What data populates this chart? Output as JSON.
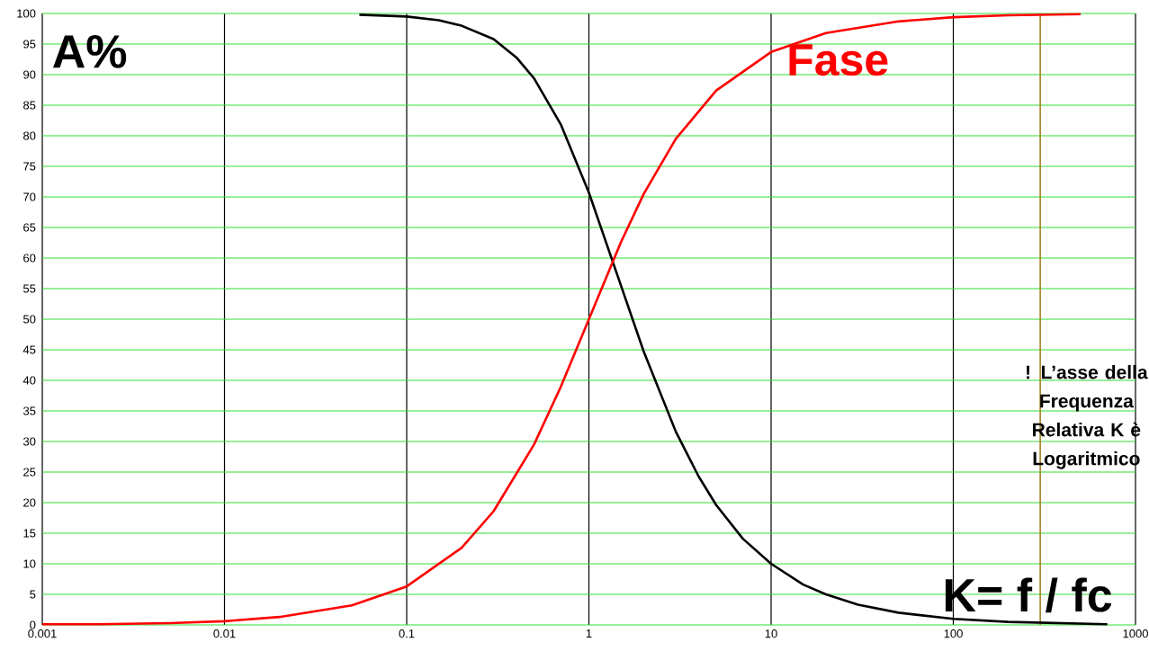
{
  "chart_data": {
    "type": "line",
    "xlabel": "K= f / fc",
    "ylabel": "A%",
    "log": "x",
    "grid": true,
    "marker": "none",
    "xlim": [
      0.001,
      1000
    ],
    "ylim": [
      0,
      100
    ],
    "xticks": [
      0.001,
      0.01,
      0.1,
      1,
      10,
      100,
      1000
    ],
    "yticks": [
      0,
      5,
      10,
      15,
      20,
      25,
      30,
      35,
      40,
      45,
      50,
      55,
      60,
      65,
      70,
      75,
      80,
      85,
      90,
      95,
      100
    ],
    "series": [
      {
        "color": "#000000",
        "x": [
          0.055,
          0.1,
          0.15,
          0.2,
          0.3,
          0.4,
          0.5,
          0.7,
          1,
          1.5,
          2,
          3,
          4,
          5,
          7,
          10,
          15,
          20,
          30,
          50,
          100,
          200,
          700
        ],
        "values": [
          99.8,
          99.5,
          98.9,
          98,
          95.8,
          92.8,
          89.4,
          81.9,
          70.7,
          55.5,
          44.7,
          31.6,
          24.3,
          19.6,
          14.1,
          10,
          6.6,
          5,
          3.3,
          2,
          1,
          0.5,
          0.1
        ]
      },
      {
        "name": "Fase",
        "color": "#ff0000",
        "x": [
          0.001,
          0.002,
          0.005,
          0.01,
          0.02,
          0.05,
          0.1,
          0.2,
          0.3,
          0.5,
          0.7,
          1,
          1.5,
          2,
          3,
          5,
          10,
          20,
          50,
          100,
          200,
          500
        ],
        "values": [
          0.1,
          0.1,
          0.3,
          0.6,
          1.3,
          3.2,
          6.3,
          12.6,
          18.6,
          29.5,
          38.9,
          50,
          62.6,
          70.5,
          79.5,
          87.4,
          93.7,
          96.8,
          98.7,
          99.4,
          99.7,
          99.9
        ]
      }
    ],
    "ref_lines": [
      {
        "axis": "x",
        "value": 300,
        "color": "#a08020"
      }
    ],
    "annotations": [
      "! L’asse della Frequenza Relativa  K è Logaritmico"
    ]
  }
}
